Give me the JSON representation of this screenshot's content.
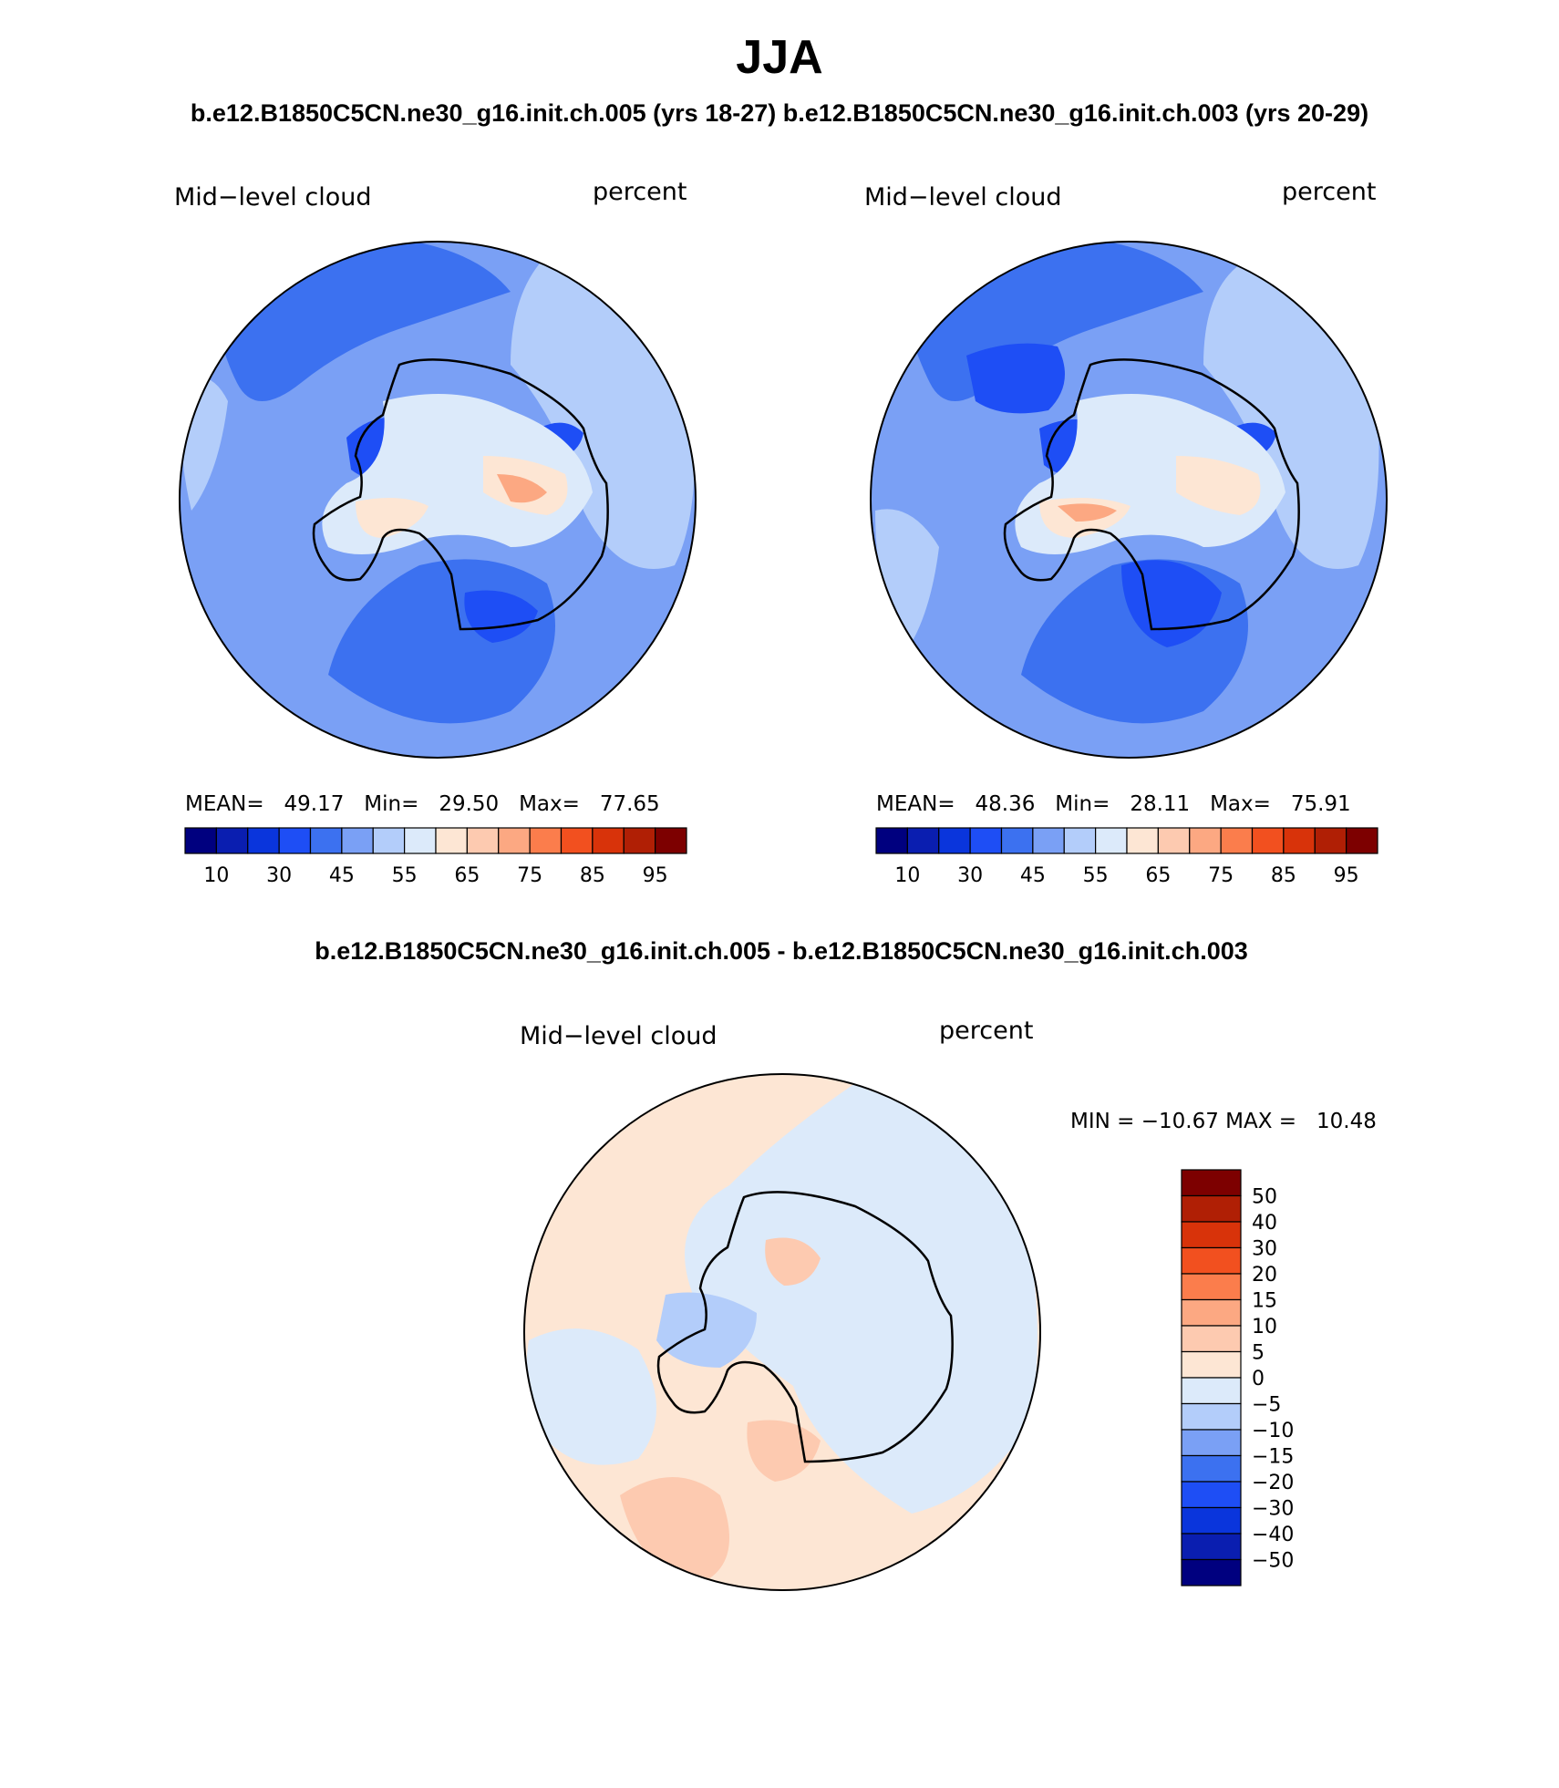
{
  "chart_data": {
    "type": "heatmap",
    "title": "JJA",
    "subtitle": "b.e12.B1850C5CN.ne30_g16.init.ch.005 (yrs 18-27) b.e12.B1850C5CN.ne30_g16.init.ch.003 (yrs 20-29)",
    "diff_title": "b.e12.B1850C5CN.ne30_g16.init.ch.005 - b.e12.B1850C5CN.ne30_g16.init.ch.003",
    "panels": [
      {
        "id": "case1",
        "variable": "Mid−level cloud",
        "units": "percent",
        "stats_text": "MEAN=   49.17   Min=   29.50   Max=   77.65",
        "mean": 49.17,
        "min": 29.5,
        "max": 77.65,
        "colorbar_ticks": [
          "10",
          "30",
          "45",
          "55",
          "65",
          "75",
          "85",
          "95"
        ],
        "colorbar_colors": [
          "#00007f",
          "#0a1eb0",
          "#0a35dc",
          "#1e4ef5",
          "#3c71f0",
          "#7aa0f5",
          "#b3cdfa",
          "#dceafa",
          "#fde6d4",
          "#fdcab0",
          "#fca882",
          "#fb7d4c",
          "#f2501f",
          "#d8330a",
          "#b01f05",
          "#7d0000"
        ]
      },
      {
        "id": "case2",
        "variable": "Mid−level cloud",
        "units": "percent",
        "stats_text": "MEAN=   48.36   Min=   28.11   Max=   75.91",
        "mean": 48.36,
        "min": 28.11,
        "max": 75.91,
        "colorbar_ticks": [
          "10",
          "30",
          "45",
          "55",
          "65",
          "75",
          "85",
          "95"
        ],
        "colorbar_colors": [
          "#00007f",
          "#0a1eb0",
          "#0a35dc",
          "#1e4ef5",
          "#3c71f0",
          "#7aa0f5",
          "#b3cdfa",
          "#dceafa",
          "#fde6d4",
          "#fdcab0",
          "#fca882",
          "#fb7d4c",
          "#f2501f",
          "#d8330a",
          "#b01f05",
          "#7d0000"
        ]
      },
      {
        "id": "diff",
        "variable": "Mid−level cloud",
        "units": "percent",
        "stats_text": "MIN = −10.67 MAX =   10.48",
        "min": -10.67,
        "max": 10.48,
        "colorbar_ticks": [
          "50",
          "40",
          "30",
          "20",
          "15",
          "10",
          "5",
          "0",
          "−5",
          "−10",
          "−15",
          "−20",
          "−30",
          "−40",
          "−50"
        ],
        "colorbar_colors": [
          "#7d0000",
          "#b01f05",
          "#d8330a",
          "#f2501f",
          "#fb7d4c",
          "#fca882",
          "#fdcab0",
          "#fde6d4",
          "#dceafa",
          "#b3cdfa",
          "#7aa0f5",
          "#3c71f0",
          "#1e4ef5",
          "#0a35dc",
          "#0a1eb0",
          "#00007f"
        ]
      }
    ]
  }
}
